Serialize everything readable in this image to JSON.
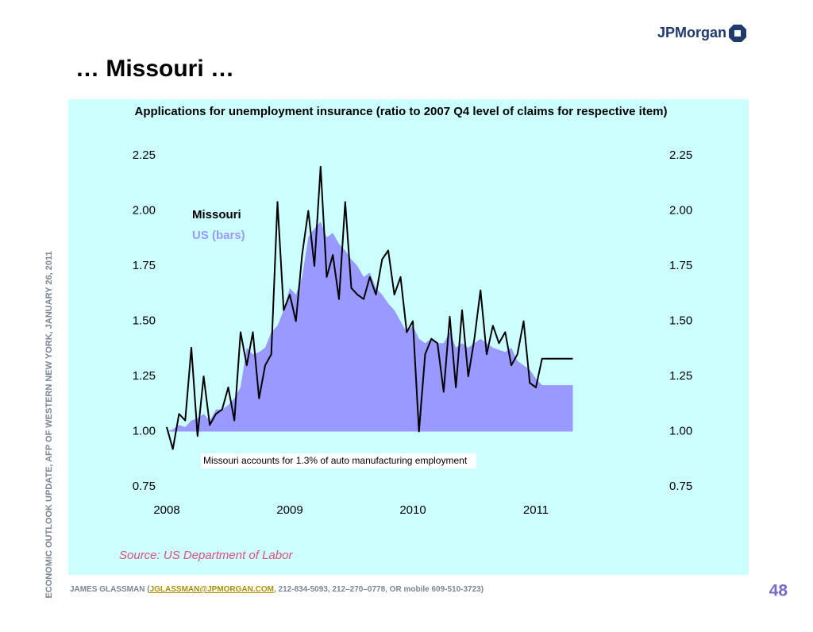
{
  "header": {
    "title": "… Missouri …",
    "logo": "JPMorgan"
  },
  "side_note": "ECONOMIC OUTLOOK UPDATE, AFP OF WESTERN NEW YORK, JANUARY 26, 2011",
  "footer": {
    "prefix": "JAMES GLASSMAN (",
    "email": "JGLASSMAN@JPMORGAN.COM",
    "suffix": ", 212-834-5093, 212–270–0778, OR mobile 609-510-3723)",
    "page": "48"
  },
  "chart_data": {
    "type": "line",
    "title": "Applications for unemployment insurance (ratio to 2007 Q4 level of claims for respective item)",
    "source": "Source: US Department of Labor",
    "annotation": "Missouri accounts for 1.3% of auto manufacturing employment",
    "x": [
      2008.0,
      2008.05,
      2008.1,
      2008.15,
      2008.2,
      2008.25,
      2008.3,
      2008.35,
      2008.4,
      2008.45,
      2008.5,
      2008.55,
      2008.6,
      2008.65,
      2008.7,
      2008.75,
      2008.8,
      2008.85,
      2008.9,
      2008.95,
      2009.0,
      2009.05,
      2009.1,
      2009.15,
      2009.2,
      2009.25,
      2009.3,
      2009.35,
      2009.4,
      2009.45,
      2009.5,
      2009.55,
      2009.6,
      2009.65,
      2009.7,
      2009.75,
      2009.8,
      2009.85,
      2009.9,
      2009.95,
      2010.0,
      2010.05,
      2010.1,
      2010.15,
      2010.2,
      2010.25,
      2010.3,
      2010.35,
      2010.4,
      2010.45,
      2010.5,
      2010.55,
      2010.6,
      2010.65,
      2010.7,
      2010.75,
      2010.8,
      2010.85,
      2010.9,
      2010.95,
      2011.0,
      2011.05,
      2011.1,
      2011.15,
      2011.2,
      2011.25,
      2011.3
    ],
    "series": [
      {
        "name": "US (bars)",
        "color": "#9999ff",
        "kind": "area",
        "values": [
          1.0,
          1.01,
          1.03,
          1.02,
          1.05,
          1.06,
          1.08,
          1.05,
          1.1,
          1.1,
          1.12,
          1.15,
          1.2,
          1.38,
          1.35,
          1.36,
          1.38,
          1.45,
          1.48,
          1.55,
          1.65,
          1.62,
          1.7,
          1.88,
          1.92,
          1.95,
          1.88,
          1.9,
          1.85,
          1.82,
          1.78,
          1.75,
          1.7,
          1.72,
          1.65,
          1.62,
          1.58,
          1.55,
          1.5,
          1.45,
          1.48,
          1.42,
          1.4,
          1.42,
          1.4,
          1.4,
          1.45,
          1.38,
          1.4,
          1.38,
          1.4,
          1.42,
          1.4,
          1.38,
          1.37,
          1.36,
          1.38,
          1.32,
          1.3,
          1.28,
          1.24,
          1.21,
          1.21,
          1.21,
          1.21,
          1.21,
          1.21
        ]
      },
      {
        "name": "Missouri",
        "color": "#000000",
        "kind": "line",
        "values": [
          1.02,
          0.92,
          1.08,
          1.05,
          1.38,
          0.98,
          1.25,
          1.03,
          1.08,
          1.1,
          1.2,
          1.05,
          1.45,
          1.3,
          1.45,
          1.15,
          1.3,
          1.35,
          2.04,
          1.55,
          1.62,
          1.5,
          1.8,
          2.0,
          1.75,
          2.2,
          1.7,
          1.8,
          1.6,
          2.04,
          1.65,
          1.62,
          1.6,
          1.7,
          1.62,
          1.78,
          1.82,
          1.62,
          1.7,
          1.45,
          1.5,
          1.0,
          1.35,
          1.42,
          1.4,
          1.18,
          1.52,
          1.2,
          1.55,
          1.25,
          1.42,
          1.64,
          1.35,
          1.48,
          1.4,
          1.45,
          1.3,
          1.35,
          1.5,
          1.22,
          1.2,
          1.33,
          1.33,
          1.33,
          1.33,
          1.33,
          1.33
        ]
      }
    ],
    "baseline": 1,
    "xlim": [
      2008,
      2011.5
    ],
    "xticks": [
      2008,
      2009,
      2010,
      2011
    ],
    "ylim": [
      0.75,
      2.25
    ],
    "yticks": [
      0.75,
      {
        "value": 1,
        "label": "1.00"
      },
      1.25,
      {
        "value": 1.5,
        "label": "1.50"
      },
      1.75,
      {
        "value": 2,
        "label": "2.00"
      },
      2.25
    ],
    "grid": false
  }
}
